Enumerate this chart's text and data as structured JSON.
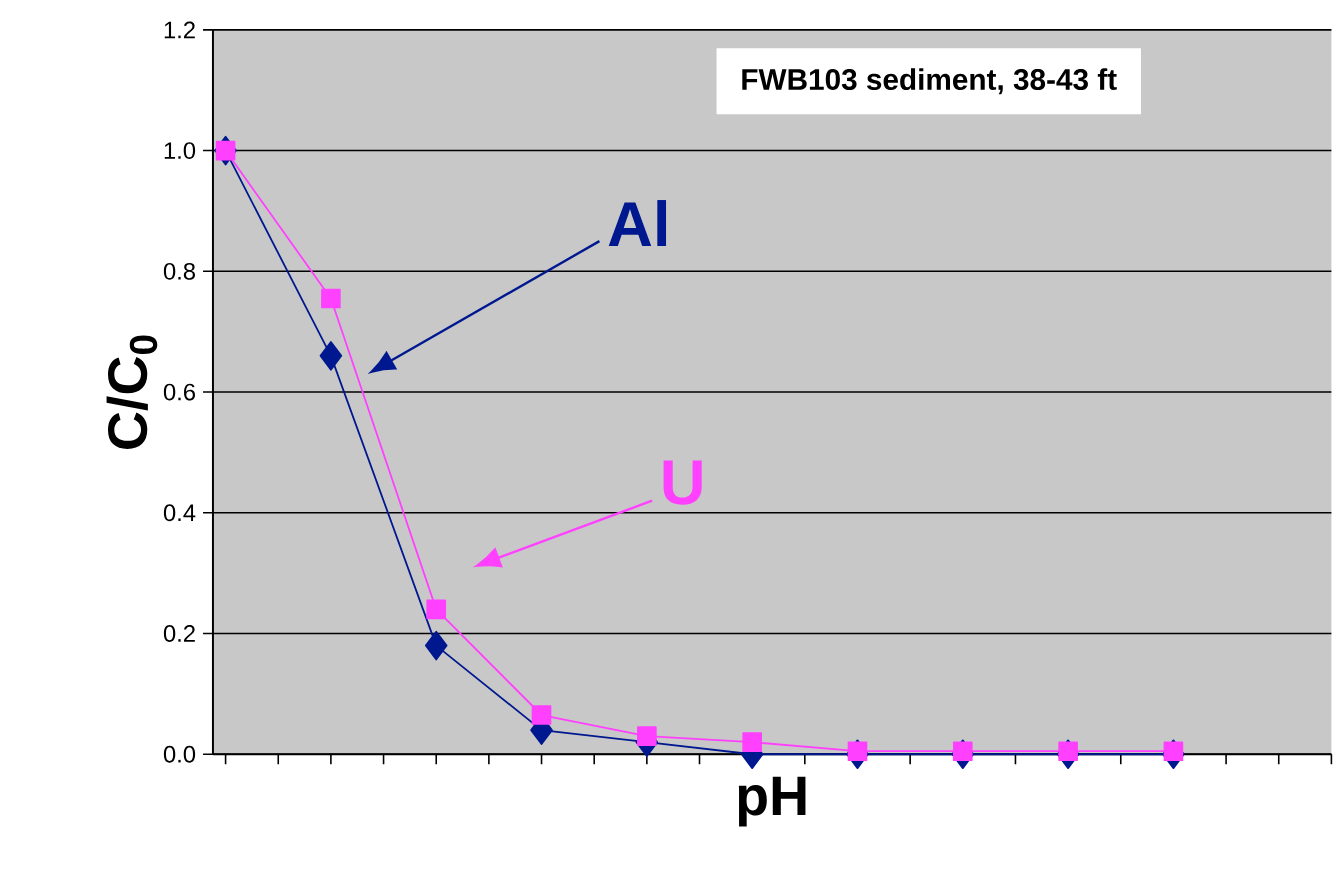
{
  "chart_data": {
    "type": "line",
    "title": "FWB103 sediment, 38-43 ft",
    "xlabel": "pH",
    "ylabel": "C/C$_{0}$",
    "categories": [
      null,
      null,
      null,
      null,
      null,
      null,
      null,
      null,
      null,
      null
    ],
    "ylim": [
      0,
      1.2
    ],
    "yticks": [
      {
        "value": 0,
        "label": "0.0"
      },
      {
        "value": 0.2,
        "label": "0.2"
      },
      {
        "value": 0.4,
        "label": "0.4"
      },
      {
        "value": 0.6,
        "label": "0.6"
      },
      {
        "value": 0.8,
        "label": "0.8"
      },
      {
        "value": 1.0,
        "label": "1.0"
      },
      {
        "value": 1.2,
        "label": "1.2"
      }
    ],
    "grid": "y",
    "legend": false,
    "line_style": "solid",
    "series": [
      {
        "name": "Al",
        "color": "#00188f",
        "marker": "diamond",
        "values": [
          1.0,
          0.66,
          0.18,
          0.04,
          0.02,
          0.0,
          0.0,
          0.0,
          0.0,
          0.0
        ]
      },
      {
        "name": "U",
        "color": "#ff40ff",
        "marker": "square",
        "values": [
          1.0,
          0.755,
          0.24,
          0.065,
          0.03,
          0.02,
          0.005,
          0.005,
          0.005,
          0.005
        ]
      }
    ]
  }
}
